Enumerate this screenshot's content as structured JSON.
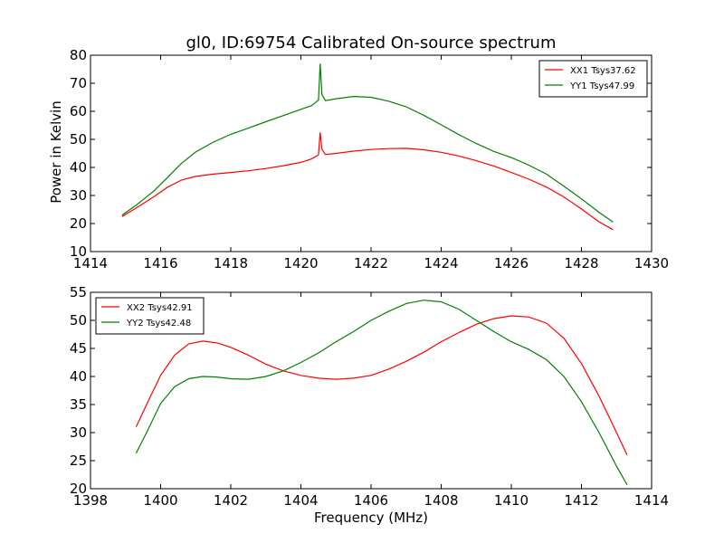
{
  "chart_data": [
    {
      "type": "line",
      "title": "gl0, ID:69754 Calibrated On-source spectrum",
      "xlabel": "",
      "ylabel": "Power in Kelvin",
      "xlim": [
        1414,
        1430
      ],
      "ylim": [
        10,
        80
      ],
      "xticks": [
        "1414",
        "1416",
        "1418",
        "1420",
        "1422",
        "1424",
        "1426",
        "1428",
        "1430"
      ],
      "yticks": [
        "10",
        "20",
        "30",
        "40",
        "50",
        "60",
        "70",
        "80"
      ],
      "legend": "top-right",
      "grid": false,
      "series": [
        {
          "name": "XX1 Tsys37.62",
          "color": "#ff0000",
          "x": [
            1414.9,
            1415.3,
            1415.8,
            1416.2,
            1416.6,
            1417.0,
            1417.5,
            1418.0,
            1418.5,
            1419.0,
            1419.5,
            1420.0,
            1420.3,
            1420.5,
            1420.55,
            1420.6,
            1420.7,
            1421.0,
            1421.5,
            1422.0,
            1422.5,
            1423.0,
            1423.5,
            1424.0,
            1424.5,
            1425.0,
            1425.5,
            1426.0,
            1426.5,
            1427.0,
            1427.5,
            1428.0,
            1428.5,
            1428.9
          ],
          "values": [
            22.5,
            25.5,
            29.5,
            33.0,
            35.5,
            36.8,
            37.6,
            38.2,
            38.8,
            39.6,
            40.6,
            41.8,
            43.0,
            44.5,
            52.5,
            46.5,
            44.6,
            45.0,
            45.8,
            46.4,
            46.7,
            46.8,
            46.3,
            45.4,
            44.1,
            42.4,
            40.5,
            38.2,
            35.8,
            33.0,
            29.5,
            25.2,
            20.6,
            17.8
          ]
        },
        {
          "name": "YY1 Tsys47.99",
          "color": "#008000",
          "x": [
            1414.9,
            1415.3,
            1415.8,
            1416.2,
            1416.6,
            1417.0,
            1417.5,
            1418.0,
            1418.5,
            1419.0,
            1419.5,
            1420.0,
            1420.3,
            1420.5,
            1420.55,
            1420.6,
            1420.7,
            1421.0,
            1421.5,
            1422.0,
            1422.5,
            1423.0,
            1423.5,
            1424.0,
            1424.5,
            1425.0,
            1425.5,
            1426.0,
            1426.5,
            1427.0,
            1427.5,
            1428.0,
            1428.5,
            1428.9
          ],
          "values": [
            23.0,
            26.5,
            31.5,
            36.5,
            41.5,
            45.5,
            49.0,
            51.8,
            54.0,
            56.3,
            58.5,
            60.7,
            62.0,
            64.0,
            77.0,
            66.0,
            63.8,
            64.5,
            65.3,
            65.0,
            63.6,
            61.6,
            58.6,
            55.2,
            51.7,
            48.5,
            45.7,
            43.5,
            40.8,
            37.6,
            33.3,
            28.8,
            24.0,
            20.5
          ]
        }
      ]
    },
    {
      "type": "line",
      "title": "",
      "xlabel": "Frequency (MHz)",
      "ylabel": "",
      "xlim": [
        1398,
        1414
      ],
      "ylim": [
        20,
        55
      ],
      "xticks": [
        "1398",
        "1400",
        "1402",
        "1404",
        "1406",
        "1408",
        "1410",
        "1412",
        "1414"
      ],
      "yticks": [
        "20",
        "25",
        "30",
        "35",
        "40",
        "45",
        "50",
        "55"
      ],
      "legend": "top-left",
      "grid": false,
      "series": [
        {
          "name": "XX2 Tsys42.91",
          "color": "#ff0000",
          "x": [
            1399.3,
            1399.6,
            1400.0,
            1400.4,
            1400.8,
            1401.2,
            1401.6,
            1402.0,
            1402.5,
            1403.0,
            1403.5,
            1404.0,
            1404.5,
            1405.0,
            1405.5,
            1406.0,
            1406.5,
            1407.0,
            1407.5,
            1408.0,
            1408.5,
            1409.0,
            1409.5,
            1410.0,
            1410.5,
            1411.0,
            1411.5,
            1412.0,
            1412.5,
            1413.0,
            1413.3
          ],
          "values": [
            31.0,
            35.0,
            40.2,
            43.8,
            45.8,
            46.3,
            46.0,
            45.2,
            43.8,
            42.2,
            41.0,
            40.2,
            39.7,
            39.5,
            39.7,
            40.2,
            41.3,
            42.7,
            44.3,
            46.2,
            47.8,
            49.3,
            50.3,
            50.8,
            50.6,
            49.5,
            46.8,
            42.3,
            36.5,
            30.0,
            26.0
          ]
        },
        {
          "name": "YY2 Tsys42.48",
          "color": "#008000",
          "x": [
            1399.3,
            1399.6,
            1400.0,
            1400.4,
            1400.8,
            1401.2,
            1401.6,
            1402.0,
            1402.5,
            1403.0,
            1403.5,
            1404.0,
            1404.5,
            1405.0,
            1405.5,
            1406.0,
            1406.5,
            1407.0,
            1407.5,
            1408.0,
            1408.5,
            1409.0,
            1409.5,
            1410.0,
            1410.5,
            1411.0,
            1411.5,
            1412.0,
            1412.5,
            1413.0,
            1413.3
          ],
          "values": [
            26.3,
            30.0,
            35.2,
            38.2,
            39.6,
            40.0,
            39.9,
            39.6,
            39.5,
            40.0,
            41.0,
            42.5,
            44.2,
            46.2,
            48.0,
            50.0,
            51.6,
            53.0,
            53.6,
            53.3,
            52.0,
            50.0,
            48.0,
            46.2,
            44.8,
            43.0,
            40.0,
            35.5,
            30.0,
            24.0,
            20.7
          ]
        }
      ]
    }
  ]
}
